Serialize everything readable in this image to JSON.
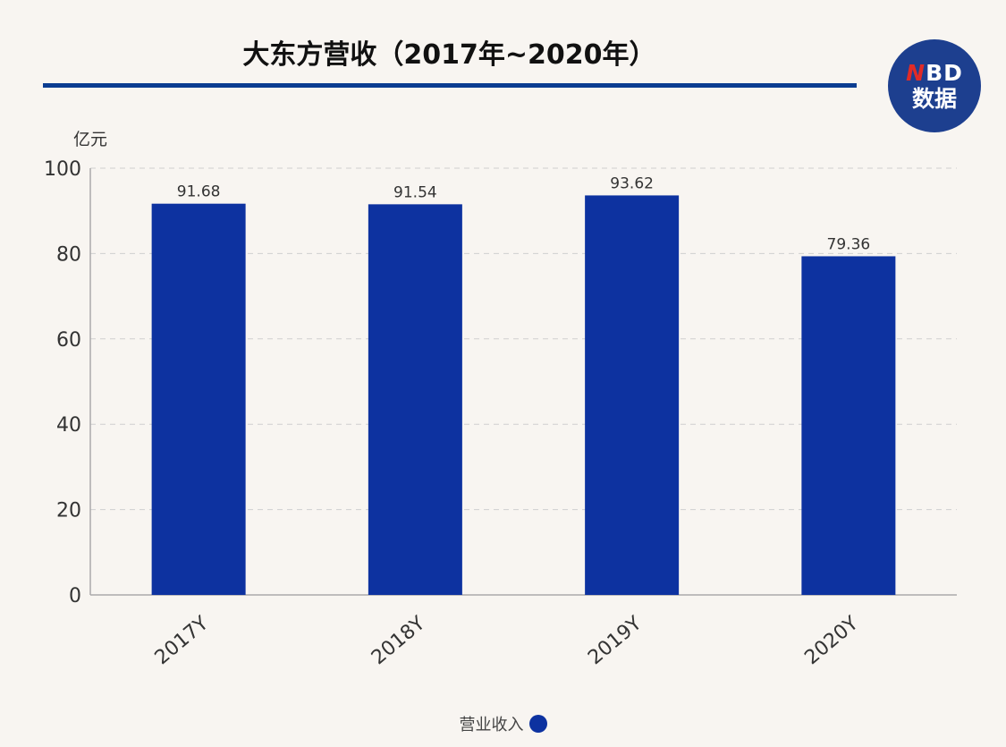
{
  "chart_data": {
    "type": "bar",
    "title": "大东方营收（2017年~2020年）",
    "unit_label": "亿元",
    "categories": [
      "2017Y",
      "2018Y",
      "2019Y",
      "2020Y"
    ],
    "series": [
      {
        "name": "营业收入",
        "values": [
          91.68,
          91.54,
          93.62,
          79.36
        ],
        "color": "#0d32a0"
      }
    ],
    "ylim": [
      0,
      100
    ],
    "yticks": [
      0,
      20,
      40,
      60,
      80,
      100
    ],
    "grid": true,
    "legend_position": "bottom-center"
  },
  "logo": {
    "line1_mark": "N",
    "line1_text": "BD",
    "line2": "数据"
  },
  "colors": {
    "accent": "#0b3d91",
    "bar": "#0d32a0",
    "background": "#f8f5f1"
  }
}
